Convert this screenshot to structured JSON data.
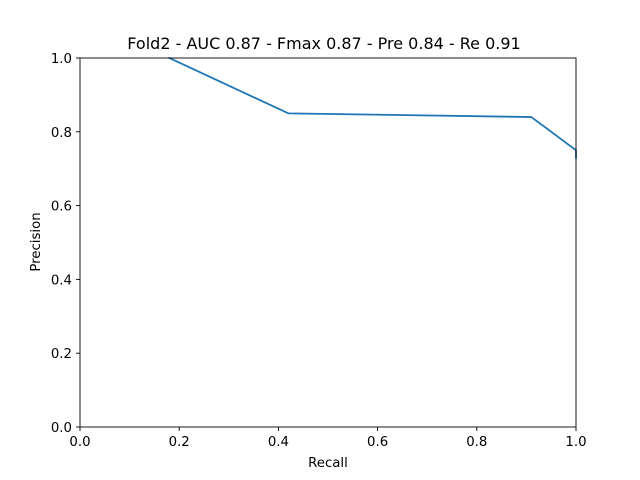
{
  "chart_data": {
    "type": "line",
    "title": "Fold2 - AUC 0.87 - Fmax 0.87 - Pre 0.84 - Re 0.91",
    "xlabel": "Recall",
    "ylabel": "Precision",
    "xlim": [
      0.0,
      1.0
    ],
    "ylim": [
      0.0,
      1.0
    ],
    "xticks": [
      "0.0",
      "0.2",
      "0.4",
      "0.6",
      "0.8",
      "1.0"
    ],
    "yticks": [
      "0.0",
      "0.2",
      "0.4",
      "0.6",
      "0.8",
      "1.0"
    ],
    "grid": false,
    "legend": false,
    "series": [
      {
        "color": "#1f77b4",
        "x": [
          0.18,
          0.42,
          0.91,
          0.99,
          1.0,
          1.0
        ],
        "y": [
          1.0,
          0.85,
          0.84,
          0.76,
          0.75,
          0.73
        ]
      }
    ]
  }
}
